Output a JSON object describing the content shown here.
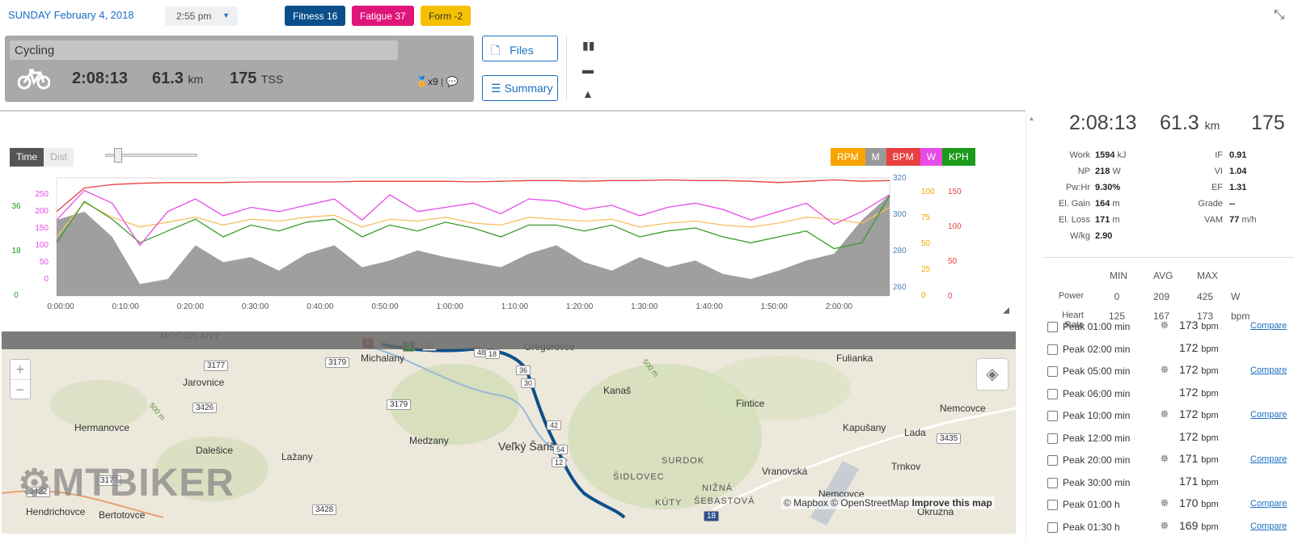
{
  "header": {
    "date": "SUNDAY February 4, 2018",
    "time": "2:55 pm",
    "pills": [
      {
        "label": "Fitness 16",
        "color": "#0a4f8c"
      },
      {
        "label": "Fatigue 37",
        "color": "#e0157a"
      },
      {
        "label": "Form -2",
        "color": "#f5c000"
      }
    ]
  },
  "activity": {
    "sport": "Cycling",
    "duration": "2:08:13",
    "distance": "61.3",
    "distance_unit": "km",
    "tss": "175",
    "tss_unit": "TSS",
    "medals": "x9",
    "files_label": "Files",
    "summary_label": "Summary"
  },
  "chart_controls": {
    "time_label": "Time",
    "dist_label": "Dist",
    "legend": [
      {
        "label": "RPM",
        "color": "#f7a400"
      },
      {
        "label": "M",
        "color": "#999999"
      },
      {
        "label": "BPM",
        "color": "#e84040"
      },
      {
        "label": "W",
        "color": "#e64ce6"
      },
      {
        "label": "KPH",
        "color": "#1a9b1a"
      }
    ]
  },
  "chart_data": {
    "type": "line",
    "x_ticks": [
      "0:00:00",
      "0:10:00",
      "0:20:00",
      "0:30:00",
      "0:40:00",
      "0:50:00",
      "1:00:00",
      "1:10:00",
      "1:20:00",
      "1:30:00",
      "1:40:00",
      "1:50:00",
      "2:00:00"
    ],
    "axes": {
      "kph": {
        "ticks": [
          "36",
          "18",
          "0"
        ],
        "color": "#1a9b1a"
      },
      "watts": {
        "ticks": [
          "250",
          "200",
          "150",
          "100",
          "50",
          "0"
        ],
        "color": "#e64ce6"
      },
      "elevation": {
        "ticks": [
          "320",
          "300",
          "280",
          "260"
        ],
        "color": "#4a7fbf"
      },
      "rpm": {
        "ticks": [
          "100",
          "75",
          "50",
          "25",
          "0"
        ],
        "color": "#f7a400"
      },
      "bpm": {
        "ticks": [
          "150",
          "100",
          "50",
          "0"
        ],
        "color": "#e84040"
      }
    },
    "series": [
      {
        "name": "BPM",
        "values": [
          125,
          160,
          165,
          167,
          168,
          168,
          168,
          169,
          169,
          169,
          169,
          170,
          170,
          170,
          170,
          169,
          170,
          171,
          171,
          170,
          171,
          171,
          172,
          171,
          171,
          170,
          168,
          170,
          172,
          170,
          171
        ]
      },
      {
        "name": "W",
        "values": [
          180,
          250,
          220,
          120,
          200,
          230,
          190,
          210,
          200,
          215,
          230,
          180,
          240,
          200,
          210,
          220,
          195,
          230,
          225,
          205,
          215,
          190,
          210,
          220,
          205,
          180,
          200,
          220,
          170,
          200,
          240
        ]
      },
      {
        "name": "RPM",
        "values": [
          60,
          95,
          80,
          70,
          75,
          80,
          72,
          78,
          76,
          80,
          82,
          70,
          78,
          76,
          80,
          74,
          72,
          80,
          78,
          76,
          78,
          70,
          74,
          76,
          72,
          70,
          74,
          80,
          78,
          74,
          90
        ]
      },
      {
        "name": "KPH",
        "values": [
          18,
          32,
          26,
          18,
          22,
          26,
          20,
          24,
          22,
          25,
          26,
          20,
          24,
          22,
          25,
          23,
          20,
          24,
          24,
          22,
          24,
          20,
          22,
          23,
          20,
          18,
          20,
          22,
          16,
          18,
          34
        ]
      },
      {
        "name": "M",
        "values": [
          300,
          305,
          290,
          262,
          265,
          285,
          275,
          278,
          270,
          280,
          285,
          272,
          276,
          282,
          278,
          275,
          272,
          280,
          285,
          275,
          270,
          278,
          272,
          276,
          268,
          265,
          270,
          276,
          280,
          300,
          315
        ]
      }
    ]
  },
  "summary": {
    "duration": "2:08:13",
    "distance": "61.3",
    "distance_unit": "km",
    "tss": "175",
    "metrics_left": [
      {
        "label": "Work",
        "value": "1594",
        "unit": "kJ"
      },
      {
        "label": "NP",
        "value": "218",
        "unit": "W"
      },
      {
        "label": "Pw:Hr",
        "value": "9.30%",
        "unit": ""
      },
      {
        "label": "El. Gain",
        "value": "164",
        "unit": "m"
      },
      {
        "label": "El. Loss",
        "value": "171",
        "unit": "m"
      },
      {
        "label": "W/kg",
        "value": "2.90",
        "unit": ""
      }
    ],
    "metrics_right": [
      {
        "label": "IF",
        "value": "0.91",
        "unit": ""
      },
      {
        "label": "VI",
        "value": "1.04",
        "unit": ""
      },
      {
        "label": "EF",
        "value": "1.31",
        "unit": ""
      },
      {
        "label": "Grade",
        "value": "--",
        "unit": ""
      },
      {
        "label": "VAM",
        "value": "77",
        "unit": "m/h"
      }
    ],
    "table_headers": [
      "MIN",
      "AVG",
      "MAX"
    ],
    "table_rows": [
      {
        "label": "Power",
        "min": "0",
        "avg": "209",
        "max": "425",
        "unit": "W"
      },
      {
        "label": "Heart Rate",
        "min": "125",
        "avg": "167",
        "max": "173",
        "unit": "bpm"
      }
    ]
  },
  "peaks": [
    {
      "label": "Peak 01:00 min",
      "value": "173",
      "unit": "bpm",
      "award": true,
      "compare": "Compare"
    },
    {
      "label": "Peak 02:00 min",
      "value": "172",
      "unit": "bpm",
      "award": false,
      "compare": ""
    },
    {
      "label": "Peak 05:00 min",
      "value": "172",
      "unit": "bpm",
      "award": true,
      "compare": "Compare"
    },
    {
      "label": "Peak 06:00 min",
      "value": "172",
      "unit": "bpm",
      "award": false,
      "compare": ""
    },
    {
      "label": "Peak 10:00 min",
      "value": "172",
      "unit": "bpm",
      "award": true,
      "compare": "Compare"
    },
    {
      "label": "Peak 12:00 min",
      "value": "172",
      "unit": "bpm",
      "award": false,
      "compare": ""
    },
    {
      "label": "Peak 20:00 min",
      "value": "171",
      "unit": "bpm",
      "award": true,
      "compare": "Compare"
    },
    {
      "label": "Peak 30:00 min",
      "value": "171",
      "unit": "bpm",
      "award": false,
      "compare": ""
    },
    {
      "label": "Peak 01:00 h",
      "value": "170",
      "unit": "bpm",
      "award": true,
      "compare": "Compare"
    },
    {
      "label": "Peak 01:30 h",
      "value": "169",
      "unit": "bpm",
      "award": true,
      "compare": "Compare"
    }
  ],
  "map": {
    "places": [
      "MOČIDLANY",
      "Michalany",
      "Gregorovce",
      "Fulianka",
      "Jarovnice",
      "Kanaš",
      "Fintice",
      "Nemcovce",
      "Hermanovce",
      "Kapušany",
      "Lada",
      "Medzany",
      "Veľký Šariš",
      "Dalešice",
      "Lažany",
      "Trnkov",
      "SURDOK",
      "ŠIDLOVEC",
      "Hendrichovce",
      "Bertotovce",
      "NIŽNÁ",
      "ŠEBASTOVÁ",
      "KÚTY",
      "Okružná",
      "Vranovská",
      "Nemcovce"
    ],
    "roads": [
      "3177",
      "3179",
      "3179",
      "3426",
      "3177",
      "3428",
      "3422",
      "3435",
      "18"
    ],
    "elev_labels": [
      "500 m",
      "500 m"
    ],
    "km_markers": [
      "60",
      "48",
      "18",
      "36",
      "30",
      "42",
      "54",
      "12"
    ],
    "attribution": "© Mapbox © OpenStreetMap",
    "improve": "Improve this map",
    "watermark": "MTBIKER"
  }
}
